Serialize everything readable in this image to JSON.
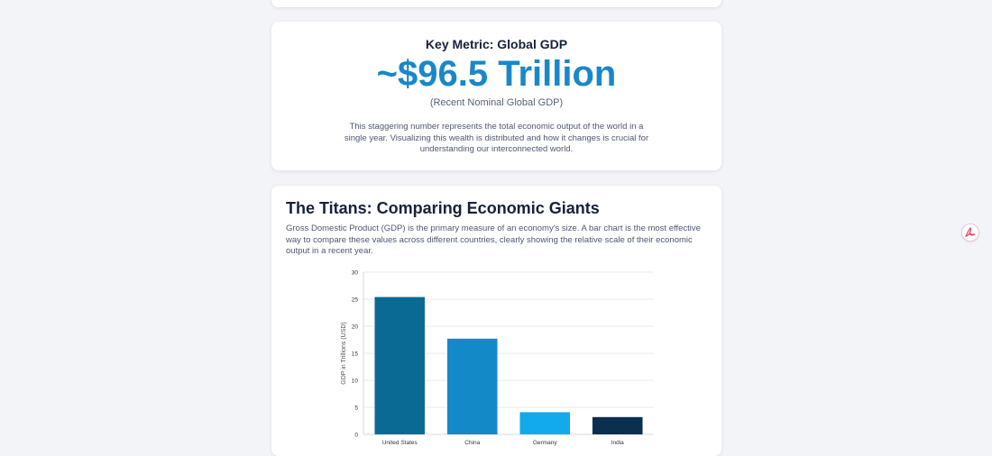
{
  "metric": {
    "title": "Key Metric: Global GDP",
    "value": "~$96.5 Trillion",
    "subtitle": "(Recent Nominal Global GDP)",
    "description": "This staggering number represents the total economic output of the world in a single year. Visualizing this wealth is distributed and how it changes is crucial for understanding our interconnected world."
  },
  "section": {
    "title": "The Titans: Comparing Economic Giants",
    "description": "Gross Domestic Product (GDP) is the primary measure of an economy's size. A bar chart is the most effective way to compare these values across different countries, clearly showing the relative scale of their economic output in a recent year."
  },
  "icons": {
    "pdf": "pdf-icon",
    "pdf_color": "#d9435a"
  },
  "chart_data": {
    "type": "bar",
    "categories": [
      "United States",
      "China",
      "Germany",
      "India"
    ],
    "values": [
      25.4,
      17.7,
      4.1,
      3.2
    ],
    "colors": [
      "#0b6a94",
      "#1389c7",
      "#13aaeb",
      "#0b2f4e"
    ],
    "title": "",
    "xlabel": "",
    "ylabel": "GDP in Trillions (USD)",
    "ylim": [
      0,
      30
    ],
    "yticks": [
      0,
      5,
      10,
      15,
      20,
      25,
      30
    ],
    "grid": true
  }
}
